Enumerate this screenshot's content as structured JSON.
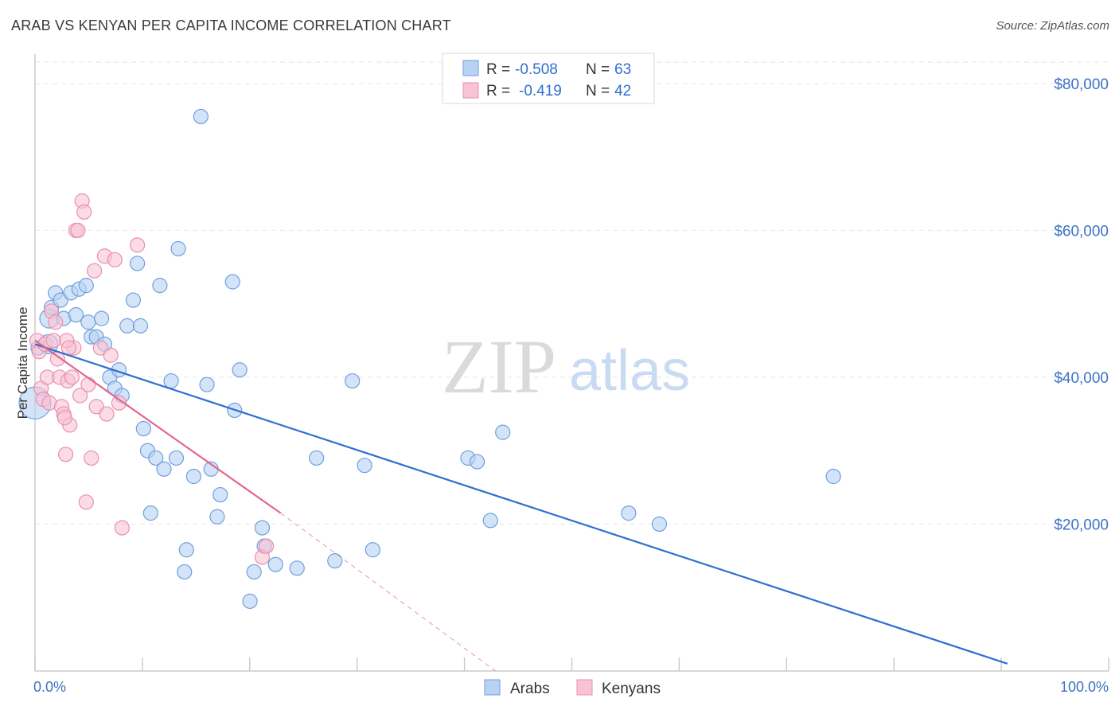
{
  "title": "ARAB VS KENYAN PER CAPITA INCOME CORRELATION CHART",
  "source": "Source: ZipAtlas.com",
  "watermark": {
    "zip": "ZIP",
    "atlas": "atlas"
  },
  "colors": {
    "arabs_fill": "#b8d2f3",
    "arabs_stroke": "#6f9fde",
    "arabs_line": "#2e6fd1",
    "kenyans_fill": "#f8c3d3",
    "kenyans_stroke": "#ea8fae",
    "kenyans_line": "#e0678f",
    "grid": "#e6e6e6",
    "tick_text": "#3d72c4"
  },
  "legend": {
    "rows": [
      {
        "r_label": "R = ",
        "r_value": "-0.508",
        "n_label": "N = ",
        "n_value": "63"
      },
      {
        "r_label": "R = ",
        "r_value": "-0.419",
        "n_label": "N = ",
        "n_value": "42"
      }
    ]
  },
  "bottom_legend": [
    "Arabs",
    "Kenyans"
  ],
  "chart_data": {
    "type": "scatter",
    "xlabel": "",
    "ylabel": "Per Capita Income",
    "xlim": [
      0,
      100
    ],
    "ylim": [
      0,
      84000
    ],
    "x_tick_labels": [
      {
        "value": 0,
        "label": "0.0%"
      },
      {
        "value": 100,
        "label": "100.0%"
      }
    ],
    "y_ticks": [
      {
        "value": 20000,
        "label": "$20,000"
      },
      {
        "value": 40000,
        "label": "$40,000"
      },
      {
        "value": 60000,
        "label": "$60,000"
      },
      {
        "value": 80000,
        "label": "$80,000"
      }
    ],
    "series": [
      {
        "name": "Arabs",
        "trend": {
          "x0": 0,
          "y0": 44500,
          "x1": 95,
          "y1": 1000,
          "dashed_to": null
        },
        "points": [
          [
            0,
            36500
          ],
          [
            1.3,
            44500
          ],
          [
            1.4,
            48000
          ],
          [
            1.6,
            49500
          ],
          [
            2,
            51500
          ],
          [
            2.5,
            50500
          ],
          [
            2.8,
            48000
          ],
          [
            3.5,
            51500
          ],
          [
            4,
            48500
          ],
          [
            4.3,
            52000
          ],
          [
            5,
            52500
          ],
          [
            5.2,
            47500
          ],
          [
            5.5,
            45500
          ],
          [
            6,
            45500
          ],
          [
            6.5,
            48000
          ],
          [
            6.8,
            44500
          ],
          [
            7.3,
            40000
          ],
          [
            7.8,
            38500
          ],
          [
            8.2,
            41000
          ],
          [
            8.5,
            37500
          ],
          [
            9,
            47000
          ],
          [
            9.6,
            50500
          ],
          [
            10,
            55500
          ],
          [
            10.3,
            47000
          ],
          [
            10.6,
            33000
          ],
          [
            11,
            30000
          ],
          [
            11.3,
            21500
          ],
          [
            11.8,
            29000
          ],
          [
            12.2,
            52500
          ],
          [
            12.6,
            27500
          ],
          [
            13.3,
            39500
          ],
          [
            13.8,
            29000
          ],
          [
            14,
            57500
          ],
          [
            14.6,
            13500
          ],
          [
            14.8,
            16500
          ],
          [
            15.5,
            26500
          ],
          [
            16.2,
            75500
          ],
          [
            16.8,
            39000
          ],
          [
            17.2,
            27500
          ],
          [
            17.8,
            21000
          ],
          [
            18.1,
            24000
          ],
          [
            19.3,
            53000
          ],
          [
            19.5,
            35500
          ],
          [
            20,
            41000
          ],
          [
            21,
            9500
          ],
          [
            21.4,
            13500
          ],
          [
            22.2,
            19500
          ],
          [
            22.4,
            17000
          ],
          [
            23.5,
            14500
          ],
          [
            25.6,
            14000
          ],
          [
            27.5,
            29000
          ],
          [
            29.3,
            15000
          ],
          [
            31,
            39500
          ],
          [
            32.2,
            28000
          ],
          [
            33,
            16500
          ],
          [
            42.3,
            29000
          ],
          [
            43.2,
            28500
          ],
          [
            44.5,
            20500
          ],
          [
            45.7,
            32500
          ],
          [
            58,
            21500
          ],
          [
            61,
            20000
          ],
          [
            78,
            26500
          ],
          [
            0.3,
            44000
          ]
        ]
      },
      {
        "name": "Kenyans",
        "trend": {
          "x0": 0,
          "y0": 45000,
          "x1": 24,
          "y1": 21500,
          "dashed_to": {
            "x": 45,
            "y": 0
          }
        },
        "points": [
          [
            0.2,
            45000
          ],
          [
            0.4,
            43500
          ],
          [
            0.6,
            38500
          ],
          [
            0.8,
            37000
          ],
          [
            1,
            44500
          ],
          [
            1.2,
            40000
          ],
          [
            1.4,
            36500
          ],
          [
            1.6,
            49000
          ],
          [
            1.8,
            45000
          ],
          [
            2,
            47500
          ],
          [
            2.2,
            42500
          ],
          [
            2.4,
            40000
          ],
          [
            2.6,
            36000
          ],
          [
            2.8,
            35000
          ],
          [
            3,
            29500
          ],
          [
            3.2,
            39500
          ],
          [
            3.4,
            33500
          ],
          [
            3.6,
            40000
          ],
          [
            3.8,
            44000
          ],
          [
            4,
            60000
          ],
          [
            4.2,
            60000
          ],
          [
            4.4,
            37500
          ],
          [
            4.6,
            64000
          ],
          [
            4.8,
            62500
          ],
          [
            5,
            23000
          ],
          [
            5.2,
            39000
          ],
          [
            5.5,
            29000
          ],
          [
            5.8,
            54500
          ],
          [
            6,
            36000
          ],
          [
            6.4,
            44000
          ],
          [
            6.8,
            56500
          ],
          [
            7,
            35000
          ],
          [
            7.4,
            43000
          ],
          [
            7.8,
            56000
          ],
          [
            8.2,
            36500
          ],
          [
            8.5,
            19500
          ],
          [
            10,
            58000
          ],
          [
            22.2,
            15500
          ],
          [
            22.6,
            17000
          ],
          [
            2.9,
            34500
          ],
          [
            3.1,
            45000
          ],
          [
            3.3,
            44000
          ]
        ]
      }
    ]
  }
}
